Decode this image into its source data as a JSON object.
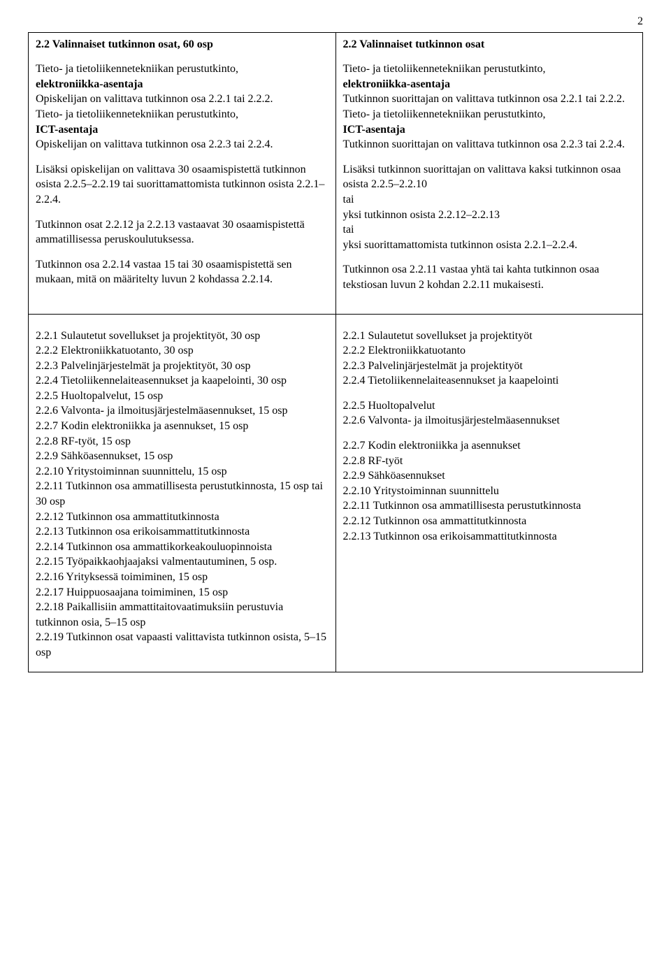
{
  "pageNumber": "2",
  "left": {
    "row1": {
      "heading": "2.2 Valinnaiset tutkinnon osat, 60 osp",
      "p1_l1": "Tieto- ja tietoliikennetekniikan perustutkinto,",
      "p1_l2": "elektroniikka-asentaja",
      "p1_l3": "Opiskelijan on valittava tutkinnon osa 2.2.1 tai 2.2.2.",
      "p1_l4": "Tieto- ja tietoliikennetekniikan perustutkinto,",
      "p1_l5": "ICT-asentaja",
      "p1_l6": "Opiskelijan on valittava tutkinnon osa 2.2.3 tai 2.2.4.",
      "p2": "Lisäksi opiskelijan on valittava 30 osaamispistettä tutkinnon osista 2.2.5–2.2.19 tai suorittamattomista tutkinnon osista 2.2.1–2.2.4.",
      "p3": "Tutkinnon osat 2.2.12 ja 2.2.13 vastaavat 30 osaamispistettä ammatillisessa peruskoulutuksessa.",
      "p4": "Tutkinnon osa 2.2.14 vastaa 15 tai 30 osaamispistettä sen mukaan, mitä on määritelty luvun 2 kohdassa 2.2.14."
    },
    "row2": {
      "items": [
        "2.2.1 Sulautetut sovellukset ja projektityöt, 30 osp",
        "2.2.2 Elektroniikkatuotanto, 30 osp",
        "2.2.3 Palvelinjärjestelmät ja projektityöt, 30 osp",
        "2.2.4 Tietoliikennelaiteasennukset ja kaapelointi, 30 osp",
        "2.2.5 Huoltopalvelut, 15 osp",
        "2.2.6 Valvonta- ja ilmoitusjärjestelmäasennukset, 15 osp",
        "2.2.7 Kodin elektroniikka ja asennukset, 15 osp",
        "2.2.8 RF-työt, 15 osp",
        "2.2.9 Sähköasennukset, 15 osp",
        "2.2.10 Yritystoiminnan suunnittelu, 15 osp",
        "2.2.11 Tutkinnon osa ammatillisesta perustutkinnosta, 15 osp tai 30 osp",
        "2.2.12 Tutkinnon osa ammattitutkinnosta",
        "2.2.13 Tutkinnon osa erikoisammattitutkinnosta",
        "2.2.14 Tutkinnon osa ammattikorkeakouluopinnoista",
        "2.2.15 Työpaikkaohjaajaksi valmentautuminen, 5 osp.",
        "2.2.16 Yrityksessä toimiminen, 15 osp",
        "2.2.17 Huippuosaajana toimiminen, 15 osp",
        "2.2.18 Paikallisiin ammattitaitovaatimuksiin perustuvia tutkinnon osia, 5–15 osp",
        "2.2.19 Tutkinnon osat vapaasti valittavista tutkinnon osista, 5–15 osp"
      ]
    }
  },
  "right": {
    "row1": {
      "heading": "2.2 Valinnaiset tutkinnon osat",
      "p1_l1": "Tieto- ja tietoliikennetekniikan perustutkinto,",
      "p1_l2": "elektroniikka-asentaja",
      "p1_l3": "Tutkinnon suorittajan on valittava tutkinnon osa 2.2.1 tai 2.2.2.",
      "p1_l4": "Tieto- ja tietoliikennetekniikan perustutkinto,",
      "p1_l5": "ICT-asentaja",
      "p1_l6": "Tutkinnon suorittajan on valittava tutkinnon osa 2.2.3 tai 2.2.4.",
      "p2_l1": "Lisäksi tutkinnon suorittajan on valittava kaksi tutkinnon osaa osista 2.2.5–2.2.10",
      "p2_l2": "tai",
      "p2_l3": "yksi tutkinnon osista 2.2.12–2.2.13",
      "p2_l4": "tai",
      "p2_l5": "yksi suorittamattomista tutkinnon osista 2.2.1–2.2.4.",
      "p3": "Tutkinnon osa 2.2.11 vastaa yhtä tai kahta tutkinnon osaa tekstiosan luvun 2 kohdan 2.2.11 mukaisesti."
    },
    "row2": {
      "group1": [
        "2.2.1 Sulautetut sovellukset ja projektityöt",
        "2.2.2 Elektroniikkatuotanto",
        "2.2.3 Palvelinjärjestelmät ja projektityöt",
        "2.2.4 Tietoliikennelaiteasennukset ja kaapelointi"
      ],
      "group2": [
        "2.2.5 Huoltopalvelut",
        "2.2.6 Valvonta- ja ilmoitusjärjestelmäasennukset"
      ],
      "group3": [
        "2.2.7 Kodin elektroniikka ja asennukset",
        "2.2.8 RF-työt",
        "2.2.9 Sähköasennukset",
        "2.2.10 Yritystoiminnan suunnittelu",
        "2.2.11 Tutkinnon osa ammatillisesta perustutkinnosta",
        "2.2.12 Tutkinnon osa ammattitutkinnosta",
        "2.2.13 Tutkinnon osa erikoisammattitutkinnosta"
      ]
    }
  }
}
